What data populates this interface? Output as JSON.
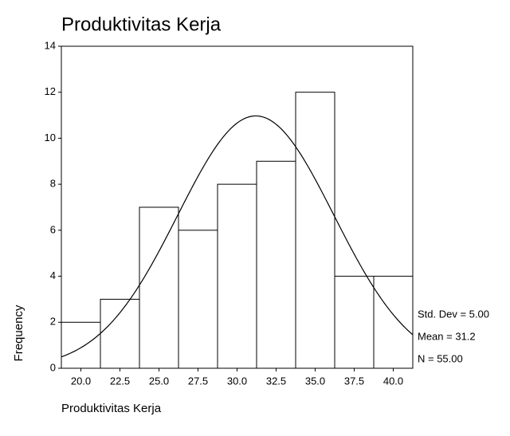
{
  "chart_data": {
    "type": "histogram",
    "title": "Produktivitas Kerja",
    "x_label": "Produktivitas Kerja",
    "y_label": "Frequency",
    "bins": [
      18.75,
      21.25,
      23.75,
      26.25,
      28.75,
      31.25,
      33.75,
      36.25,
      38.75,
      41.25
    ],
    "values": [
      2,
      3,
      7,
      6,
      8,
      9,
      12,
      4,
      4
    ],
    "color": "#ffffff",
    "xlim": [
      18.75,
      41.25
    ],
    "xticks": [
      {
        "value": 20,
        "label": "20.0"
      },
      22.5,
      {
        "value": 25,
        "label": "25.0"
      },
      27.5,
      {
        "value": 30,
        "label": "30.0"
      },
      32.5,
      {
        "value": 35,
        "label": "35.0"
      },
      37.5,
      {
        "value": 40,
        "label": "40.0"
      }
    ],
    "ylim": [
      0,
      14
    ],
    "yticks": [
      0,
      2,
      4,
      6,
      8,
      10,
      12,
      14
    ],
    "normal_curve": {
      "mean": 31.2,
      "std_dev": 5,
      "n": 55
    },
    "annotations": [
      "Std. Dev = 5.00",
      "Mean = 31.2",
      "N = 55.00"
    ]
  }
}
